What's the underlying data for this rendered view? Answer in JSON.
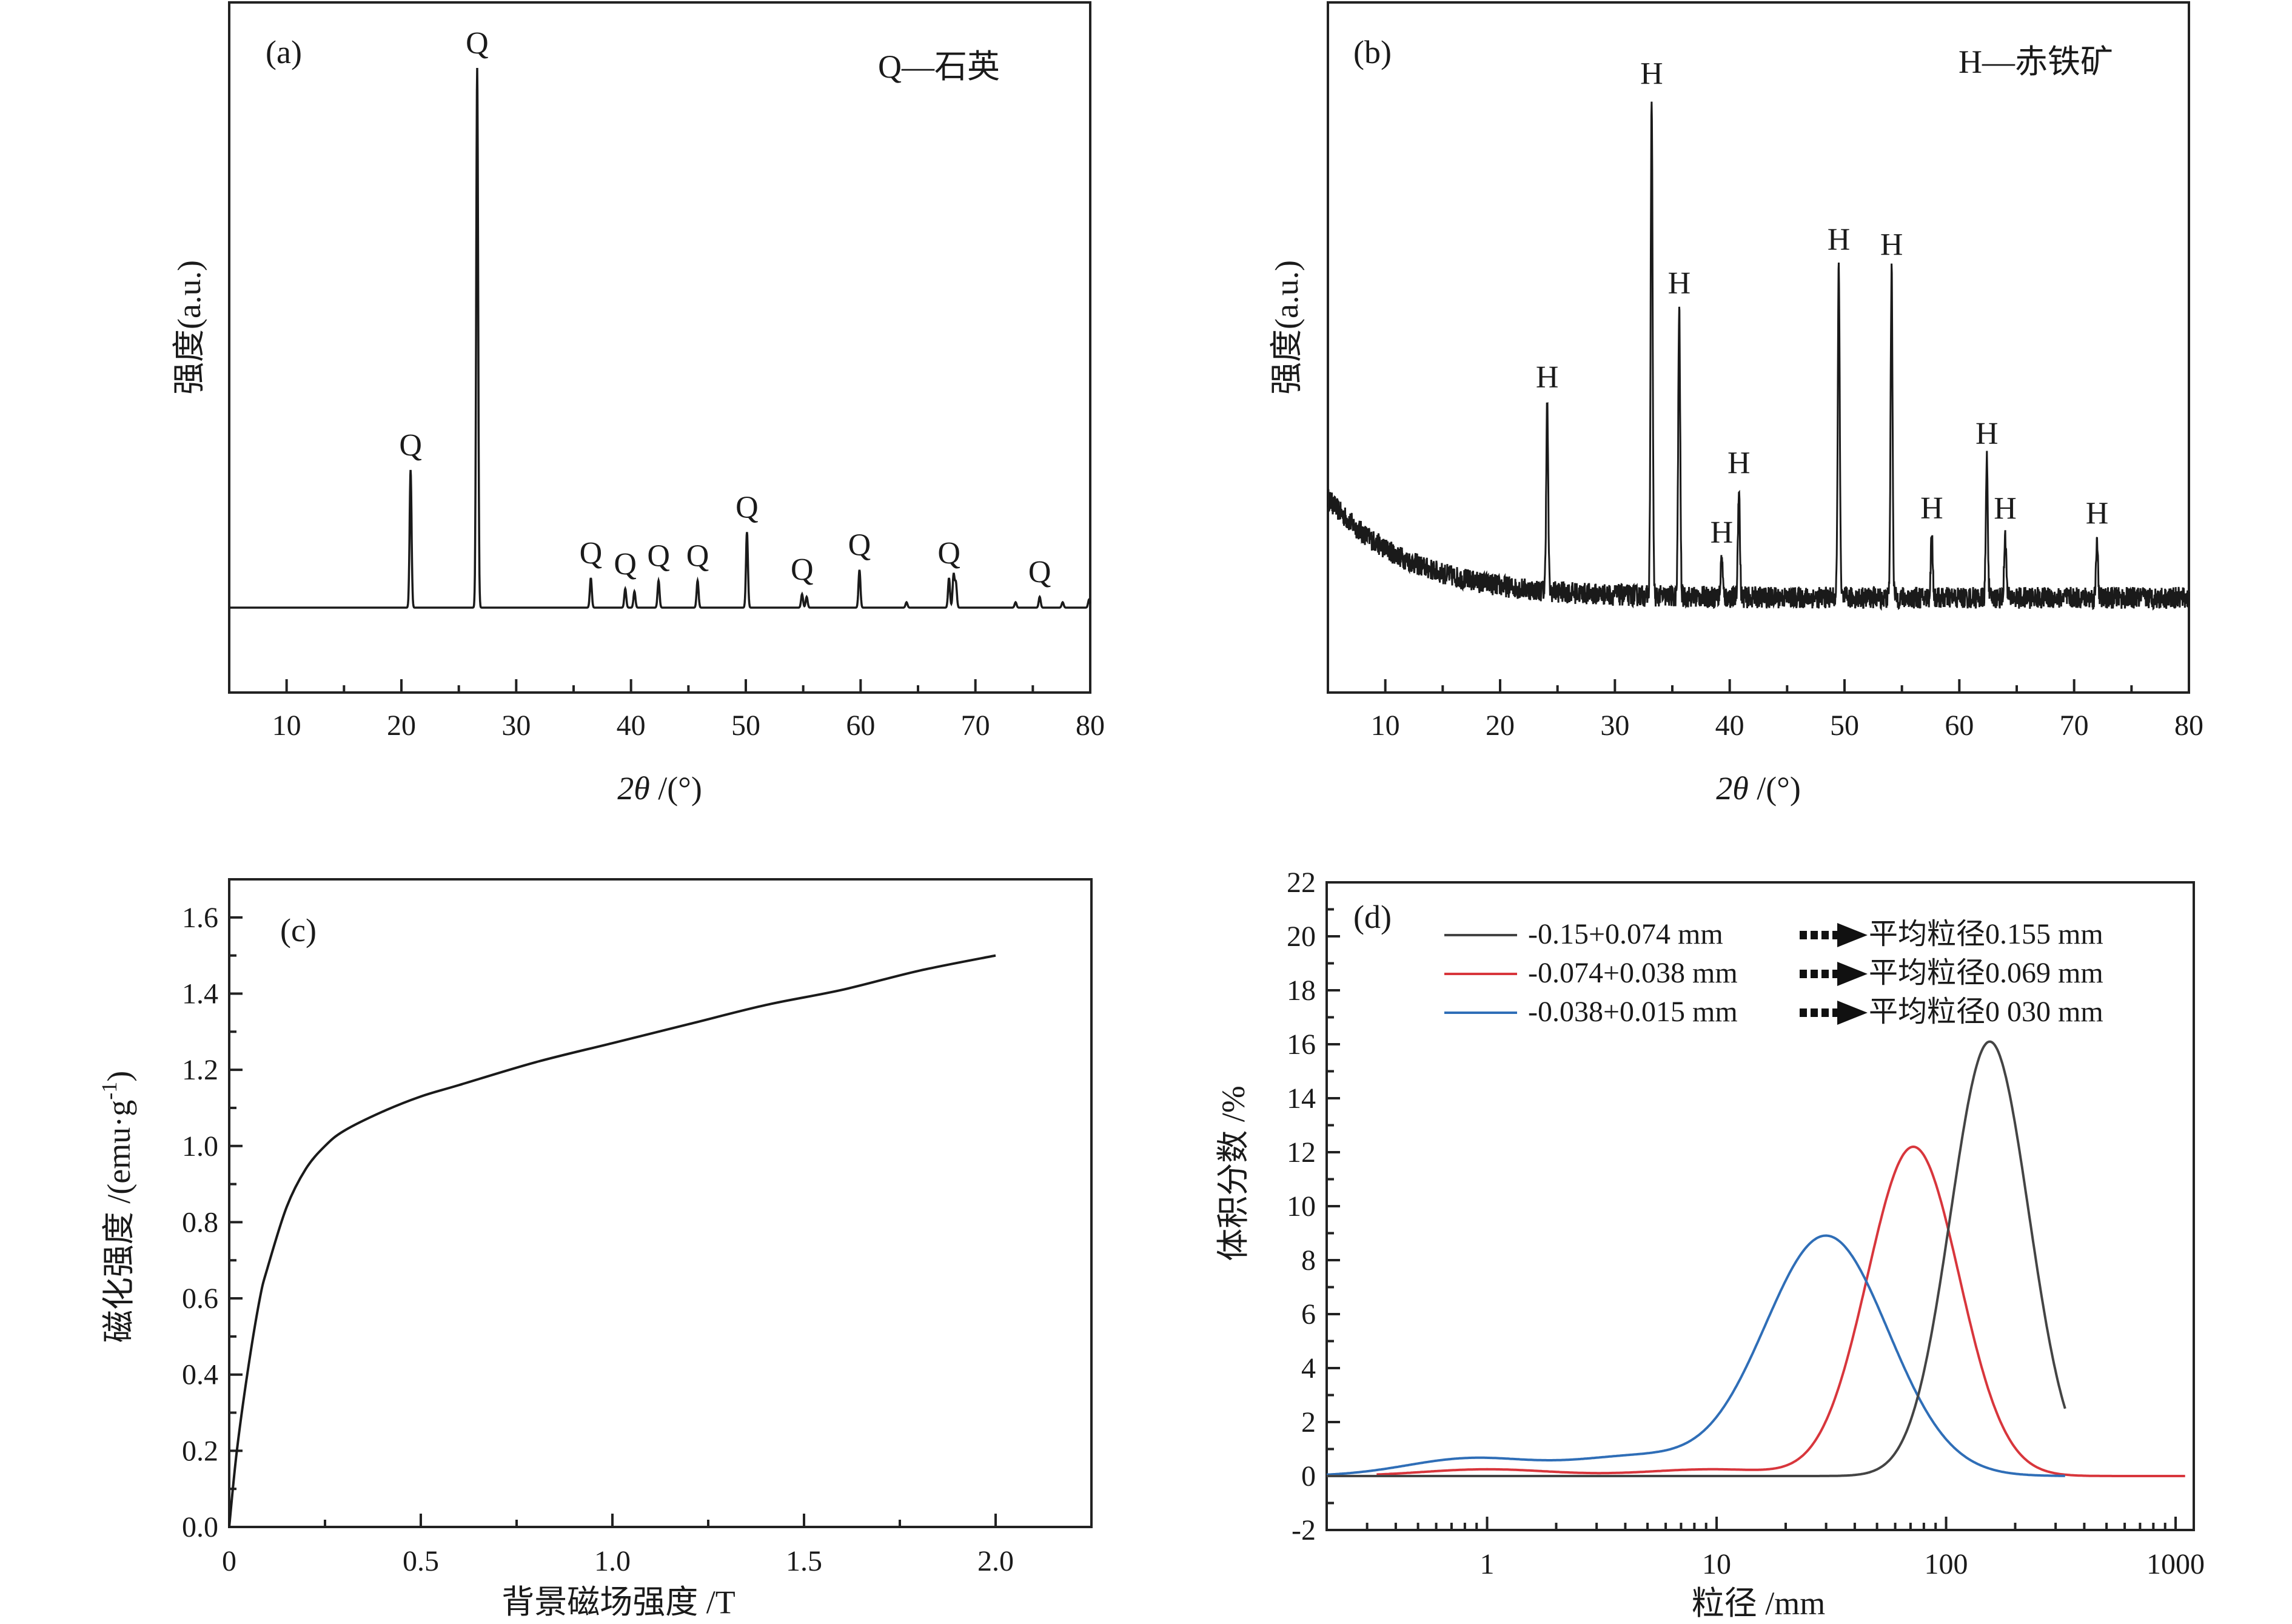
{
  "chart_data": [
    {
      "type": "line",
      "panel_label": "(a)",
      "annotation": "Q—石英",
      "xlabel_italic": "2θ",
      "xlabel_rest": " /(°)",
      "ylabel": "强度(a.u.)",
      "xlim": [
        5,
        80
      ],
      "xticks": [
        10,
        20,
        30,
        40,
        50,
        60,
        70,
        80
      ],
      "y_scale_note": "arbitrary units, relative intensity 0-1",
      "color": "#1a1a1a",
      "baseline": 0.0,
      "peaks": [
        {
          "x": 20.8,
          "y": 0.255,
          "label": "Q"
        },
        {
          "x": 26.6,
          "y": 1.0,
          "label": "Q"
        },
        {
          "x": 36.5,
          "y": 0.055,
          "label": "Q"
        },
        {
          "x": 39.5,
          "y": 0.035,
          "label": "Q"
        },
        {
          "x": 40.3,
          "y": 0.03,
          "label": ""
        },
        {
          "x": 42.4,
          "y": 0.05,
          "label": "Q"
        },
        {
          "x": 45.8,
          "y": 0.05,
          "label": "Q"
        },
        {
          "x": 50.1,
          "y": 0.14,
          "label": "Q"
        },
        {
          "x": 54.9,
          "y": 0.025,
          "label": "Q"
        },
        {
          "x": 55.3,
          "y": 0.02,
          "label": ""
        },
        {
          "x": 59.9,
          "y": 0.07,
          "label": "Q"
        },
        {
          "x": 64.0,
          "y": 0.01,
          "label": ""
        },
        {
          "x": 67.7,
          "y": 0.055,
          "label": "Q"
        },
        {
          "x": 68.1,
          "y": 0.06,
          "label": ""
        },
        {
          "x": 68.3,
          "y": 0.045,
          "label": ""
        },
        {
          "x": 73.5,
          "y": 0.01,
          "label": ""
        },
        {
          "x": 75.6,
          "y": 0.02,
          "label": "Q"
        },
        {
          "x": 77.6,
          "y": 0.01,
          "label": ""
        },
        {
          "x": 79.9,
          "y": 0.015,
          "label": ""
        }
      ]
    },
    {
      "type": "line",
      "panel_label": "(b)",
      "annotation": "H—赤铁矿",
      "xlabel_italic": "2θ",
      "xlabel_rest": " /(°)",
      "ylabel": "强度(a.u.)",
      "xlim": [
        5,
        80
      ],
      "xticks": [
        10,
        20,
        30,
        40,
        50,
        60,
        70,
        80
      ],
      "y_scale_note": "arbitrary units, relative intensity 0-1",
      "color": "#1a1a1a",
      "noise_amplitude": 0.022,
      "background": {
        "start": 0.2,
        "decay": 0.14,
        "floor": 0.005
      },
      "peaks": [
        {
          "x": 24.1,
          "y": 0.38,
          "label": "H"
        },
        {
          "x": 33.2,
          "y": 1.0,
          "label": "H"
        },
        {
          "x": 35.6,
          "y": 0.58,
          "label": "H"
        },
        {
          "x": 39.3,
          "y": 0.08,
          "label": "H"
        },
        {
          "x": 40.8,
          "y": 0.22,
          "label": "H"
        },
        {
          "x": 49.5,
          "y": 0.67,
          "label": "H"
        },
        {
          "x": 54.1,
          "y": 0.66,
          "label": "H"
        },
        {
          "x": 57.6,
          "y": 0.13,
          "label": "H"
        },
        {
          "x": 62.4,
          "y": 0.28,
          "label": "H"
        },
        {
          "x": 64.0,
          "y": 0.13,
          "label": "H"
        },
        {
          "x": 72.0,
          "y": 0.12,
          "label": "H"
        }
      ]
    },
    {
      "type": "line",
      "panel_label": "(c)",
      "xlabel": "背景磁场强度  /T",
      "ylabel_main": "磁化强度  /(emu·g",
      "ylabel_sup": "-1",
      "ylabel_end": ")",
      "xlim": [
        0,
        2.25
      ],
      "ylim": [
        0,
        1.7
      ],
      "xticks": [
        "0",
        "0.5",
        "1.0",
        "1.5",
        "2.0"
      ],
      "xtick_values": [
        0,
        0.5,
        1.0,
        1.5,
        2.0
      ],
      "yticks": [
        "0.0",
        "0.2",
        "0.4",
        "0.6",
        "0.8",
        "1.0",
        "1.2",
        "1.4",
        "1.6"
      ],
      "ytick_values": [
        0,
        0.2,
        0.4,
        0.6,
        0.8,
        1.0,
        1.2,
        1.4,
        1.6
      ],
      "color": "#1a1a1a",
      "x": [
        0,
        0.02,
        0.05,
        0.08,
        0.1,
        0.15,
        0.2,
        0.25,
        0.3,
        0.4,
        0.5,
        0.6,
        0.8,
        1.0,
        1.2,
        1.4,
        1.6,
        1.8,
        2.0
      ],
      "y": [
        0,
        0.2,
        0.42,
        0.6,
        0.68,
        0.84,
        0.94,
        1.0,
        1.04,
        1.09,
        1.13,
        1.16,
        1.22,
        1.27,
        1.32,
        1.37,
        1.41,
        1.46,
        1.5
      ]
    },
    {
      "type": "line",
      "panel_label": "(d)",
      "xlabel": "粒径  /mm",
      "ylabel": "体积分数  /%",
      "x_scale": "log",
      "xlim": [
        0.2,
        1200
      ],
      "ylim": [
        -2,
        22
      ],
      "xticks": [
        "1",
        "10",
        "100",
        "1000"
      ],
      "xtick_values": [
        1,
        10,
        100,
        1000
      ],
      "yticks": [
        "-2",
        "0",
        "2",
        "4",
        "6",
        "8",
        "10",
        "12",
        "14",
        "16",
        "18",
        "20",
        "22"
      ],
      "ytick_values": [
        -2,
        0,
        2,
        4,
        6,
        8,
        10,
        12,
        14,
        16,
        18,
        20,
        22
      ],
      "series": [
        {
          "name": "-0.15+0.074 mm",
          "mean_label": "平均粒径0.155 mm",
          "color": "#444444",
          "peak_x": 155,
          "peak_y": 16.1,
          "log_sigma": 0.17,
          "x_range": [
            0.2,
            330
          ],
          "small_bumps": []
        },
        {
          "name": "-0.074+0.038 mm",
          "mean_label": "平均粒径0.069 mm",
          "color": "#d8363c",
          "peak_x": 72,
          "peak_y": 12.2,
          "log_sigma": 0.2,
          "x_range": [
            0.33,
            1100
          ],
          "small_bumps": [
            {
              "x": 1.0,
              "y": 0.25
            },
            {
              "x": 9.5,
              "y": 0.25
            }
          ]
        },
        {
          "name": "-0.038+0.015 mm",
          "mean_label": "平均粒径0 030 mm",
          "color": "#2f6eb7",
          "peak_x": 30,
          "peak_y": 8.9,
          "log_sigma": 0.27,
          "x_range": [
            0.2,
            330
          ],
          "small_bumps": [
            {
              "x": 0.85,
              "y": 0.65
            },
            {
              "x": 4.5,
              "y": 0.7
            }
          ]
        }
      ]
    }
  ]
}
